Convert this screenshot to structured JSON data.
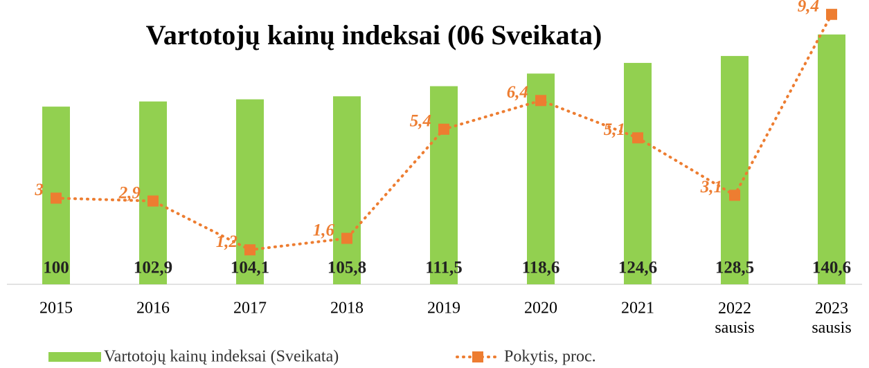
{
  "chart_data": {
    "type": "bar-line",
    "title": "Vartotojų kainų indeksai (06 Sveikata)",
    "categories": [
      "2015",
      "2016",
      "2017",
      "2018",
      "2019",
      "2020",
      "2021",
      "2022 sausis",
      "2023 sausis"
    ],
    "ylim": [
      0,
      160
    ],
    "y2lim": [
      0,
      9.9
    ],
    "series": [
      {
        "name": "Vartotojų kainų indeksai (Sveikata)",
        "type": "bar",
        "color": "#92d050",
        "values": [
          100,
          102.9,
          104.1,
          105.8,
          111.5,
          118.6,
          124.6,
          128.5,
          140.6
        ],
        "value_labels": [
          "100",
          "102,9",
          "104,1",
          "105,8",
          "111,5",
          "118,6",
          "124,6",
          "128,5",
          "140,6"
        ]
      },
      {
        "name": "Pokytis, proc.",
        "type": "line",
        "axis": "y2",
        "color": "#ed7d31",
        "values": [
          3,
          2.9,
          1.2,
          1.6,
          5.4,
          6.4,
          5.1,
          3.1,
          9.4
        ],
        "value_labels": [
          "3",
          "2,9",
          "1,2",
          "1,6",
          "5,4",
          "6,4",
          "5,1",
          "3,1",
          "9,4"
        ]
      }
    ]
  }
}
